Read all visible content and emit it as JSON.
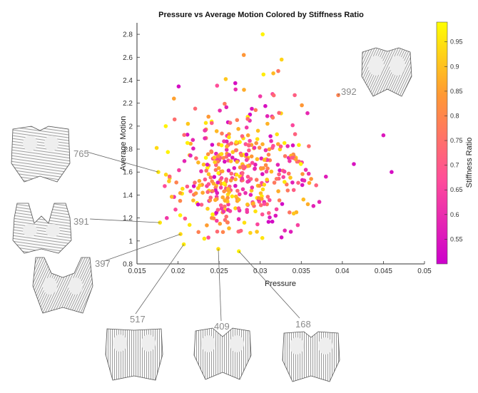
{
  "chart_data": {
    "type": "scatter",
    "title": "Pressure vs Average Motion Colored by Stiffness Ratio",
    "xlabel": "Pressure",
    "ylabel": "Average Motion",
    "xlim": [
      0.015,
      0.05
    ],
    "ylim": [
      0.8,
      2.9
    ],
    "xticks": [
      "0.015",
      "0.02",
      "0.025",
      "0.03",
      "0.035",
      "0.04",
      "0.045",
      "0.05"
    ],
    "yticks": [
      "0.8",
      "1",
      "1.2",
      "1.4",
      "1.6",
      "1.8",
      "2",
      "2.2",
      "2.4",
      "2.6",
      "2.8"
    ],
    "grid": false,
    "colorbar": {
      "label": "Stiffness Ratio",
      "range": [
        0.5,
        0.99
      ],
      "ticks": [
        "0.55",
        "0.6",
        "0.65",
        "0.7",
        "0.75",
        "0.8",
        "0.85",
        "0.9",
        "0.95"
      ],
      "colormap": [
        "#cc00cc",
        "#ff4d99",
        "#ff9933",
        "#ffff00"
      ]
    },
    "annotations": [
      {
        "id": "392",
        "x": 0.0395,
        "y": 2.27
      },
      {
        "id": "765",
        "x": 0.0176,
        "y": 1.6
      },
      {
        "id": "391",
        "x": 0.0178,
        "y": 1.16
      },
      {
        "id": "397",
        "x": 0.0203,
        "y": 1.06
      },
      {
        "id": "517",
        "x": 0.0207,
        "y": 0.97
      },
      {
        "id": "409",
        "x": 0.0249,
        "y": 0.93
      },
      {
        "id": "168",
        "x": 0.0274,
        "y": 0.91
      }
    ],
    "points": [
      [
        0.0395,
        2.27,
        0.78
      ],
      [
        0.045,
        1.92,
        0.55
      ],
      [
        0.046,
        1.6,
        0.53
      ],
      [
        0.0414,
        1.67,
        0.54
      ],
      [
        0.038,
        1.56,
        0.56
      ],
      [
        0.0372,
        1.34,
        0.58
      ],
      [
        0.0362,
        1.54,
        0.82
      ],
      [
        0.0358,
        1.32,
        0.86
      ],
      [
        0.0342,
        2.27,
        0.7
      ],
      [
        0.0344,
        1.25,
        0.87
      ],
      [
        0.0176,
        1.6,
        0.95
      ],
      [
        0.0178,
        1.16,
        0.95
      ],
      [
        0.0203,
        1.06,
        0.93
      ],
      [
        0.0207,
        0.97,
        0.96
      ],
      [
        0.0249,
        0.93,
        0.94
      ],
      [
        0.0274,
        0.91,
        0.97
      ],
      [
        0.0303,
        2.8,
        0.97
      ],
      [
        0.028,
        2.62,
        0.82
      ],
      [
        0.0326,
        2.58,
        0.92
      ],
      [
        0.0322,
        2.48,
        0.75
      ],
      [
        0.0316,
        2.46,
        0.88
      ],
      [
        0.0304,
        2.45,
        0.96
      ],
      [
        0.0258,
        2.41,
        0.9
      ],
      [
        0.0315,
        2.28,
        0.66
      ],
      [
        0.03,
        2.26,
        0.62
      ],
      [
        0.027,
        2.32,
        0.6
      ],
      [
        0.0195,
        2.24,
        0.84
      ],
      [
        0.0185,
        2.0,
        0.97
      ],
      [
        0.0174,
        1.81,
        0.93
      ],
      [
        0.0189,
        1.52,
        0.9
      ],
      [
        0.0212,
        2.02,
        0.9
      ],
      [
        0.0218,
        1.88,
        0.58
      ],
      [
        0.0222,
        1.72,
        0.72
      ],
      [
        0.023,
        1.42,
        0.85
      ],
      [
        0.0236,
        1.28,
        0.91
      ],
      [
        0.0241,
        1.2,
        0.8
      ],
      [
        0.0251,
        1.15,
        0.83
      ],
      [
        0.0262,
        1.11,
        0.88
      ],
      [
        0.0288,
        1.07,
        0.92
      ],
      [
        0.0296,
        1.08,
        0.9
      ],
      [
        0.0232,
        1.02,
        0.95
      ],
      [
        0.0214,
        1.14,
        0.95
      ]
    ],
    "cluster": {
      "cx": 0.0275,
      "cy": 1.6,
      "sx": 0.0042,
      "sy": 0.3,
      "n": 440,
      "seed": 7
    }
  }
}
